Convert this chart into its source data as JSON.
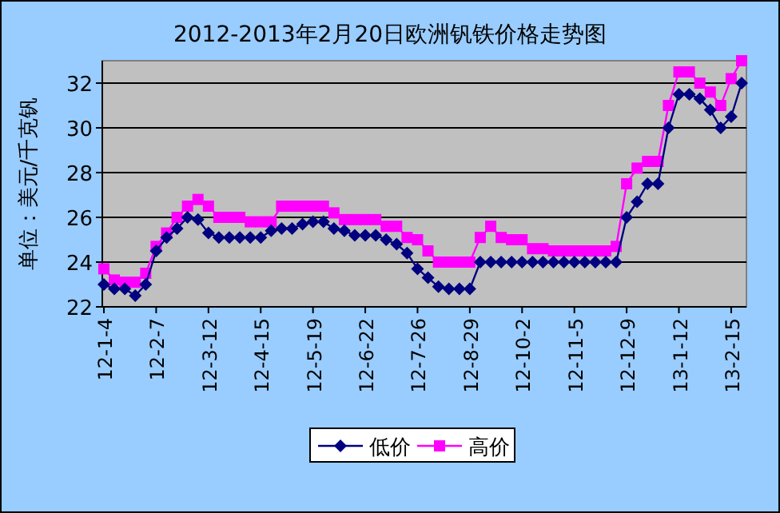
{
  "chart_data": {
    "type": "line",
    "title": "2012-2013年2月20日欧洲钒铁价格走势图",
    "ylabel": "单位：美元/千克钒",
    "categories": [
      "12-1-4",
      null,
      null,
      null,
      null,
      "12-2-7",
      null,
      null,
      null,
      null,
      "12-3-12",
      null,
      null,
      null,
      null,
      "12-4-15",
      null,
      null,
      null,
      null,
      "12-5-19",
      null,
      null,
      null,
      null,
      "12-6-22",
      null,
      null,
      null,
      null,
      "12-7-26",
      null,
      null,
      null,
      null,
      "12-8-29",
      null,
      null,
      null,
      null,
      "12-10-2",
      null,
      null,
      null,
      null,
      "12-11-5",
      null,
      null,
      null,
      null,
      "12-12-9",
      null,
      null,
      null,
      null,
      "13-1-12",
      null,
      null,
      null,
      null,
      "13-2-15",
      null
    ],
    "series": [
      {
        "name": "低价",
        "color": "#000080",
        "marker": "diamond",
        "values": [
          23.0,
          22.8,
          22.8,
          22.5,
          23.0,
          24.5,
          25.1,
          25.5,
          26.0,
          25.9,
          25.3,
          25.1,
          25.1,
          25.1,
          25.1,
          25.1,
          25.4,
          25.5,
          25.5,
          25.7,
          25.8,
          25.8,
          25.5,
          25.4,
          25.2,
          25.2,
          25.2,
          25.0,
          24.8,
          24.4,
          23.7,
          23.3,
          22.9,
          22.8,
          22.8,
          22.8,
          24.0,
          24.0,
          24.0,
          24.0,
          24.0,
          24.0,
          24.0,
          24.0,
          24.0,
          24.0,
          24.0,
          24.0,
          24.0,
          24.0,
          26.0,
          26.7,
          27.5,
          27.5,
          30.0,
          31.5,
          31.5,
          31.3,
          30.8,
          30.0,
          30.5,
          32.0
        ]
      },
      {
        "name": "高价",
        "color": "#ff00ff",
        "marker": "square",
        "values": [
          23.7,
          23.2,
          23.1,
          23.1,
          23.5,
          24.7,
          25.3,
          26.0,
          26.5,
          26.8,
          26.5,
          26.0,
          26.0,
          26.0,
          25.8,
          25.8,
          25.8,
          26.5,
          26.5,
          26.5,
          26.5,
          26.5,
          26.2,
          25.9,
          25.9,
          25.9,
          25.9,
          25.6,
          25.6,
          25.1,
          25.0,
          24.5,
          24.0,
          24.0,
          24.0,
          24.0,
          25.1,
          25.6,
          25.1,
          25.0,
          25.0,
          24.6,
          24.6,
          24.5,
          24.5,
          24.5,
          24.5,
          24.5,
          24.5,
          24.7,
          27.5,
          28.2,
          28.5,
          28.5,
          31.0,
          32.5,
          32.5,
          32.0,
          31.6,
          31.0,
          32.2,
          33.0
        ]
      }
    ],
    "ylim": [
      22,
      33
    ],
    "yticks": [
      22,
      24,
      26,
      28,
      30,
      32
    ],
    "grid": "y",
    "legend": "bottom",
    "line_style": "solid"
  }
}
